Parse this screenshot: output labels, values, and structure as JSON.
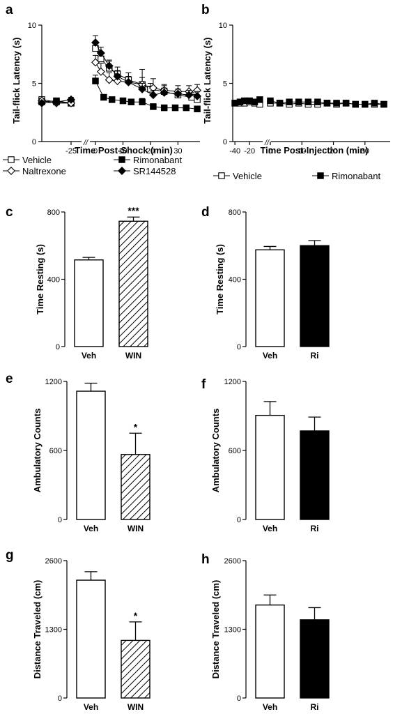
{
  "chart_data": [
    {
      "panel": "a",
      "type": "line",
      "xlabel": "Time Post-Shock (min)",
      "ylabel": "Tail-flick Latency (s)",
      "xticks": [
        "-25",
        "0",
        "10",
        "20",
        "30"
      ],
      "yticks": [
        "0",
        "5",
        "10"
      ],
      "ylim": [
        0,
        10
      ],
      "axis_break": "//",
      "series": [
        {
          "name": "Vehicle",
          "marker": "open-square",
          "x": [
            -37,
            -31,
            -25,
            0,
            2,
            5,
            8,
            12,
            17,
            20,
            25,
            30,
            35,
            37
          ],
          "y": [
            3.6,
            3.4,
            3.3,
            8.0,
            7.1,
            6.3,
            5.8,
            5.3,
            4.9,
            4.5,
            4.3,
            4.0,
            3.8,
            3.6
          ],
          "err": [
            0.2,
            0.2,
            0.2,
            0.6,
            0.6,
            0.6,
            0.6,
            0.6,
            0.6,
            0.5,
            0.5,
            0.5,
            0.4,
            0.4
          ]
        },
        {
          "name": "Rimonabant",
          "marker": "filled-square",
          "x": [
            -37,
            -31,
            -25,
            0,
            3,
            6,
            10,
            13,
            17,
            21,
            25,
            29,
            33,
            37
          ],
          "y": [
            3.4,
            3.5,
            3.3,
            5.2,
            3.8,
            3.6,
            3.5,
            3.4,
            3.4,
            3.0,
            2.9,
            2.9,
            2.9,
            2.8
          ],
          "err": [
            0.1,
            0.1,
            0.1,
            0.5,
            0.2,
            0.1,
            0.1,
            0.2,
            0.3,
            0.1,
            0.1,
            0.1,
            0.1,
            0.1
          ]
        },
        {
          "name": "Naltrexone",
          "marker": "open-diamond",
          "x": [
            -37,
            -31,
            -25,
            0,
            2,
            5,
            8,
            12,
            17,
            21,
            25,
            30,
            34,
            37
          ],
          "y": [
            3.5,
            3.3,
            3.3,
            6.8,
            6.0,
            5.3,
            5.2,
            5.1,
            4.9,
            4.6,
            4.4,
            4.3,
            4.3,
            4.4
          ],
          "err": [
            0.2,
            0.2,
            0.2,
            0.6,
            0.7,
            0.6,
            0.6,
            0.8,
            1.3,
            0.8,
            0.5,
            0.5,
            0.5,
            0.5
          ]
        },
        {
          "name": "SR144528",
          "marker": "filled-diamond",
          "x": [
            -37,
            -31,
            -25,
            0,
            2,
            5,
            8,
            12,
            17,
            21,
            25,
            30,
            34,
            37
          ],
          "y": [
            3.3,
            3.4,
            3.6,
            8.5,
            7.6,
            6.5,
            5.6,
            5.1,
            4.5,
            4.0,
            4.2,
            4.1,
            4.0,
            3.9
          ],
          "err": [
            0.2,
            0.2,
            0.2,
            0.6,
            0.5,
            0.5,
            0.5,
            0.5,
            0.5,
            0.4,
            0.4,
            0.4,
            0.4,
            0.4
          ]
        }
      ]
    },
    {
      "panel": "b",
      "type": "line",
      "xlabel": "Time Post-Injection (min)",
      "ylabel": "Tail-flick Latency (s)",
      "xticks": [
        "-40",
        "-20",
        "0",
        "10",
        "20",
        "30"
      ],
      "yticks": [
        "0",
        "5",
        "10"
      ],
      "ylim": [
        0,
        10
      ],
      "axis_break": "//",
      "series": [
        {
          "name": "Vehicle",
          "marker": "open-square",
          "x": [
            -40,
            -33,
            -27,
            -20,
            -13,
            -6,
            0,
            3,
            6,
            9,
            12,
            15,
            18,
            21,
            24,
            27,
            30,
            33,
            36
          ],
          "y": [
            3.3,
            3.3,
            3.3,
            3.4,
            3.3,
            3.2,
            3.3,
            3.3,
            3.2,
            3.3,
            3.2,
            3.2,
            3.3,
            3.2,
            3.3,
            3.2,
            3.2,
            3.2,
            3.2
          ],
          "err": [
            0.15,
            0.15,
            0.15,
            0.15,
            0.15,
            0.15,
            0.15,
            0.15,
            0.15,
            0.15,
            0.15,
            0.15,
            0.15,
            0.15,
            0.15,
            0.15,
            0.15,
            0.15,
            0.15
          ]
        },
        {
          "name": "Rimonabant",
          "marker": "filled-square",
          "x": [
            -40,
            -33,
            -27,
            -20,
            -13,
            -6,
            0,
            3,
            6,
            9,
            12,
            15,
            18,
            21,
            24,
            27,
            30,
            33,
            36
          ],
          "y": [
            3.3,
            3.4,
            3.5,
            3.5,
            3.4,
            3.6,
            3.5,
            3.3,
            3.4,
            3.4,
            3.4,
            3.4,
            3.3,
            3.3,
            3.3,
            3.2,
            3.2,
            3.3,
            3.2
          ],
          "err": [
            0.15,
            0.15,
            0.15,
            0.15,
            0.15,
            0.15,
            0.15,
            0.15,
            0.15,
            0.15,
            0.15,
            0.15,
            0.15,
            0.15,
            0.15,
            0.15,
            0.15,
            0.15,
            0.15
          ]
        }
      ]
    },
    {
      "panel": "c",
      "type": "bar",
      "ylabel": "Time Resting (s)",
      "yticks": [
        "0",
        "400",
        "800"
      ],
      "ylim": [
        0,
        800
      ],
      "categories": [
        "Veh",
        "WIN"
      ],
      "values": [
        515,
        745
      ],
      "err": [
        15,
        25
      ],
      "fills": [
        "open",
        "hatched"
      ],
      "annotations": [
        "",
        "***"
      ]
    },
    {
      "panel": "d",
      "type": "bar",
      "ylabel": "Time Resting (s)",
      "yticks": [
        "0",
        "400",
        "800"
      ],
      "ylim": [
        0,
        800
      ],
      "categories": [
        "Veh",
        "Ri"
      ],
      "values": [
        575,
        600
      ],
      "err": [
        20,
        30
      ],
      "fills": [
        "open",
        "filled"
      ],
      "annotations": [
        "",
        ""
      ]
    },
    {
      "panel": "e",
      "type": "bar",
      "ylabel": "Ambulatory Counts",
      "yticks": [
        "0",
        "600",
        "1200"
      ],
      "ylim": [
        0,
        1200
      ],
      "categories": [
        "Veh",
        "WIN"
      ],
      "values": [
        1115,
        565
      ],
      "err": [
        70,
        185
      ],
      "fills": [
        "open",
        "hatched"
      ],
      "annotations": [
        "",
        "*"
      ]
    },
    {
      "panel": "f",
      "type": "bar",
      "ylabel": "Ambulatory Counts",
      "yticks": [
        "0",
        "600",
        "1200"
      ],
      "ylim": [
        0,
        1200
      ],
      "categories": [
        "Veh",
        "Ri"
      ],
      "values": [
        905,
        770
      ],
      "err": [
        120,
        120
      ],
      "fills": [
        "open",
        "filled"
      ],
      "annotations": [
        "",
        ""
      ]
    },
    {
      "panel": "g",
      "type": "bar",
      "ylabel": "Distance Traveled (cm)",
      "yticks": [
        "0",
        "1300",
        "2600"
      ],
      "ylim": [
        0,
        2600
      ],
      "categories": [
        "Veh",
        "WIN"
      ],
      "values": [
        2230,
        1090
      ],
      "err": [
        160,
        350
      ],
      "fills": [
        "open",
        "hatched"
      ],
      "annotations": [
        "",
        "*"
      ]
    },
    {
      "panel": "h",
      "type": "bar",
      "ylabel": "Distance Traveled (cm)",
      "yticks": [
        "0",
        "1300",
        "2600"
      ],
      "ylim": [
        0,
        2600
      ],
      "categories": [
        "Veh",
        "Ri"
      ],
      "values": [
        1760,
        1480
      ],
      "err": [
        190,
        230
      ],
      "fills": [
        "open",
        "filled"
      ],
      "annotations": [
        "",
        ""
      ]
    }
  ]
}
